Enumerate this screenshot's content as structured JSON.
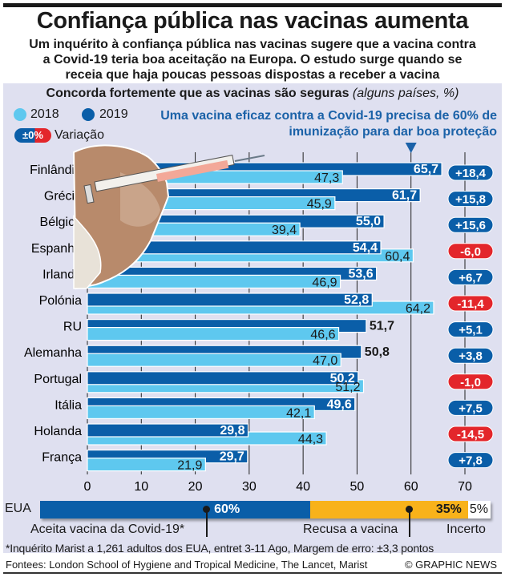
{
  "header": {
    "title": "Confiança pública nas vacinas aumenta",
    "subtitle_lines": [
      "Um inquérito à confiança pública nas vacinas sugere que a vacina contra",
      "a Covid-19 teria boa aceitação na Europa. O estudo surge quando se",
      "receia que haja poucas pessoas dispostas a receber a vacina"
    ]
  },
  "colors": {
    "y2018": "#5ec8ef",
    "y2019": "#0a5ea8",
    "positive": "#0a5ea8",
    "negative": "#e3262b",
    "refuse": "#f8b21a",
    "panel": "#dfe0f0"
  },
  "chart_data": {
    "type": "bar",
    "orientation": "horizontal",
    "title": "Concorda fortemente que as vacinas são seguras",
    "title_note": "(alguns países, %)",
    "categories": [
      "Finlândia",
      "Grécia",
      "Bélgica",
      "Espanha",
      "Irlanda",
      "Polónia",
      "RU",
      "Alemanha",
      "Portugal",
      "Itália",
      "Holanda",
      "França"
    ],
    "series": [
      {
        "name": "2018",
        "values": [
          47.3,
          45.9,
          39.4,
          60.4,
          46.9,
          64.2,
          46.6,
          47.0,
          51.2,
          42.1,
          44.3,
          21.9
        ]
      },
      {
        "name": "2019",
        "values": [
          65.7,
          61.7,
          55.0,
          54.4,
          53.6,
          52.8,
          51.7,
          50.8,
          50.2,
          49.6,
          29.8,
          29.7
        ]
      }
    ],
    "labels_2018": [
      "47,3",
      "45,9",
      "39,4",
      "60,4",
      "46,9",
      "64,2",
      "46,6",
      "47,0",
      "51,2",
      "42,1",
      "44,3",
      "21,9"
    ],
    "labels_2019": [
      "65,7",
      "61,7",
      "55,0",
      "54,4",
      "53,6",
      "52,8",
      "51,7",
      "50,8",
      "50,2",
      "49,6",
      "29,8",
      "29,7"
    ],
    "change": [
      "+18,4",
      "+15,8",
      "+15,6",
      "-6,0",
      "+6,7",
      "-11,4",
      "+5,1",
      "+3,8",
      "-1,0",
      "+7,5",
      "-14,5",
      "+7,8"
    ],
    "change_values": [
      18.4,
      15.8,
      15.6,
      -6.0,
      6.7,
      -11.4,
      5.1,
      3.8,
      -1.0,
      7.5,
      -14.5,
      7.8
    ],
    "xlim": [
      0,
      70
    ],
    "xticks": [
      0,
      10,
      20,
      30,
      40,
      50,
      60,
      70
    ],
    "xtick_labels": [
      "0",
      "10",
      "20",
      "30",
      "40",
      "50",
      "60",
      "70"
    ],
    "grid": true,
    "reference_line": {
      "value": 60,
      "label": "Uma vacina eficaz contra a Covid-19 precisa de 60% de imunização para dar boa proteção"
    },
    "legend": {
      "placement": "top-left",
      "entries": [
        "2018",
        "2019"
      ],
      "change_entry": "Variação",
      "change_pill": "±0%"
    },
    "usa": {
      "label": "EUA",
      "segments": [
        {
          "name": "Aceita vacina da Covid-19*",
          "value": 60,
          "label": "60%"
        },
        {
          "name": "Recusa a vacina",
          "value": 35,
          "label": "35%"
        },
        {
          "name": "Incerto",
          "value": 5,
          "label": "5%"
        }
      ]
    }
  },
  "footer": {
    "footnote": "*Inquérito Marist a 1,261 adultos dos EUA, entret 3-11 Ago, Margem de erro: ±3,3 pontos",
    "sources": "Fontees: London School of Hygiene and Tropical Medicine, The Lancet, Marist",
    "credit": "© GRAPHIC NEWS"
  }
}
